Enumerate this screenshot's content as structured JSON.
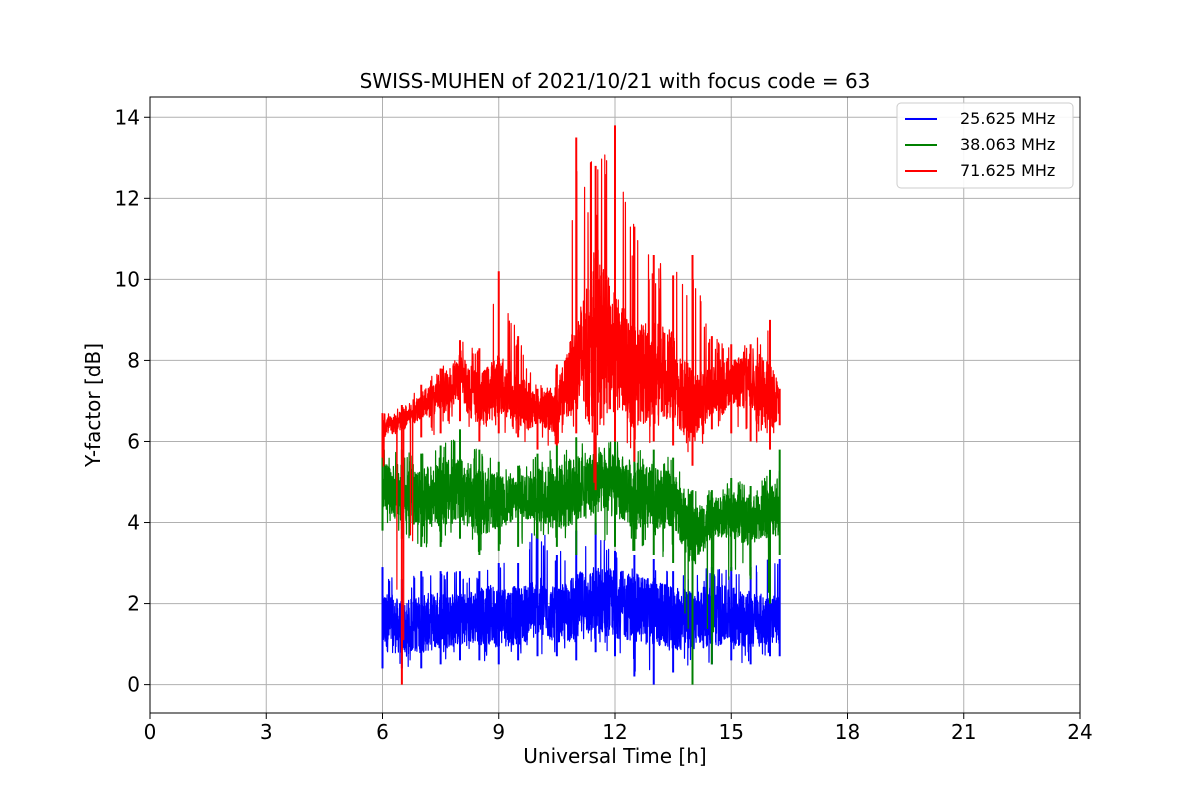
{
  "chart_data": {
    "type": "line",
    "title": "SWISS-MUHEN of 2021/10/21 with focus code = 63",
    "xlabel": "Universal Time [h]",
    "ylabel": "Y-factor [dB]",
    "xlim": [
      0,
      24
    ],
    "ylim": [
      -0.7,
      14.5
    ],
    "xticks": [
      0,
      3,
      6,
      9,
      12,
      15,
      18,
      21,
      24
    ],
    "yticks": [
      0,
      2,
      4,
      6,
      8,
      10,
      12,
      14
    ],
    "grid": true,
    "legend_position": "top-right",
    "series": [
      {
        "name": "25.625 MHz",
        "color": "#0000ff",
        "x": [
          6.0,
          6.5,
          7.0,
          7.5,
          8.0,
          8.5,
          9.0,
          9.5,
          10.0,
          10.5,
          11.0,
          11.5,
          12.0,
          12.5,
          13.0,
          13.5,
          14.0,
          14.5,
          15.0,
          15.5,
          16.0,
          16.25
        ],
        "y": [
          1.6,
          1.4,
          1.5,
          1.6,
          1.6,
          1.7,
          1.7,
          1.7,
          1.9,
          1.7,
          1.9,
          2.1,
          2.0,
          1.9,
          1.8,
          1.6,
          1.6,
          1.7,
          1.7,
          1.6,
          1.6,
          1.6
        ],
        "y_min": [
          0.4,
          0.4,
          0.4,
          0.5,
          0.6,
          0.6,
          0.5,
          0.6,
          0.7,
          0.7,
          0.6,
          0.8,
          0.7,
          0.2,
          0.0,
          0.3,
          0.5,
          0.5,
          0.6,
          0.5,
          0.7,
          0.7
        ],
        "y_max": [
          2.9,
          2.6,
          2.8,
          2.8,
          2.8,
          2.8,
          3.0,
          3.0,
          4.1,
          3.2,
          3.8,
          4.0,
          3.3,
          3.2,
          3.1,
          2.8,
          2.8,
          2.9,
          2.9,
          2.9,
          3.1,
          3.1
        ]
      },
      {
        "name": "38.063 MHz",
        "color": "#008000",
        "x": [
          6.0,
          6.5,
          7.0,
          7.5,
          8.0,
          8.5,
          9.0,
          9.5,
          10.0,
          10.5,
          11.0,
          11.5,
          12.0,
          12.5,
          13.0,
          13.5,
          14.0,
          14.5,
          15.0,
          15.5,
          16.0,
          16.25
        ],
        "y": [
          4.9,
          4.7,
          4.6,
          4.7,
          4.8,
          4.5,
          4.5,
          4.6,
          4.7,
          4.6,
          4.8,
          5.0,
          4.9,
          4.7,
          4.5,
          4.6,
          3.6,
          4.1,
          4.2,
          4.0,
          4.3,
          4.5
        ],
        "y_min": [
          3.8,
          3.6,
          3.4,
          3.4,
          3.6,
          3.2,
          3.3,
          3.4,
          3.6,
          3.4,
          3.2,
          3.7,
          3.4,
          3.3,
          3.2,
          3.0,
          0.0,
          0.5,
          2.8,
          2.6,
          2.0,
          3.2
        ],
        "y_max": [
          5.8,
          5.8,
          5.7,
          5.9,
          6.3,
          5.8,
          5.5,
          5.4,
          5.7,
          5.9,
          6.1,
          6.2,
          6.1,
          6.0,
          5.8,
          5.6,
          4.8,
          4.8,
          5.1,
          4.9,
          5.3,
          5.8
        ]
      },
      {
        "name": "71.625 MHz",
        "color": "#ff0000",
        "x": [
          6.0,
          6.5,
          7.0,
          7.5,
          8.0,
          8.5,
          9.0,
          9.5,
          10.0,
          10.5,
          11.0,
          11.5,
          12.0,
          12.5,
          13.0,
          13.5,
          14.0,
          14.5,
          15.0,
          15.5,
          16.0,
          16.25
        ],
        "y": [
          6.3,
          6.5,
          6.9,
          7.1,
          7.6,
          7.0,
          7.4,
          7.0,
          6.8,
          6.8,
          7.9,
          8.5,
          8.2,
          7.6,
          7.8,
          7.6,
          6.8,
          7.2,
          7.5,
          7.4,
          7.1,
          7.0
        ],
        "y_min": [
          5.6,
          0.0,
          6.1,
          6.2,
          6.5,
          6.0,
          6.2,
          6.1,
          5.8,
          5.9,
          6.2,
          4.8,
          6.0,
          5.5,
          6.0,
          5.9,
          5.4,
          6.3,
          6.2,
          6.0,
          5.8,
          6.4
        ],
        "y_max": [
          6.7,
          6.9,
          7.4,
          7.8,
          8.5,
          8.3,
          10.2,
          8.6,
          7.3,
          7.9,
          13.5,
          12.8,
          13.8,
          11.3,
          10.6,
          10.1,
          10.6,
          8.6,
          8.4,
          8.4,
          9.0,
          7.3
        ]
      }
    ]
  }
}
